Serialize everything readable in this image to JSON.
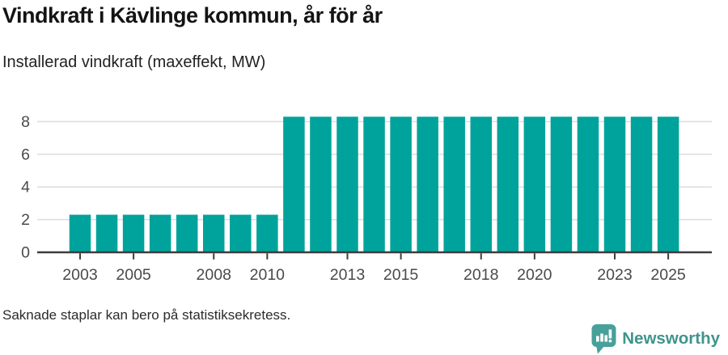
{
  "header": {
    "title": "Vindkraft i Kävlinge kommun, år för år",
    "subtitle": "Installerad vindkraft (maxeffekt, MW)"
  },
  "chart_data": {
    "type": "bar",
    "title": "Vindkraft i Kävlinge kommun, år för år",
    "subtitle": "Installerad vindkraft (maxeffekt, MW)",
    "xlabel": "",
    "ylabel": "",
    "x": [
      2002,
      2003,
      2004,
      2005,
      2006,
      2007,
      2008,
      2009,
      2010,
      2011,
      2012,
      2013,
      2014,
      2015,
      2016,
      2017,
      2018,
      2019,
      2020,
      2021,
      2022,
      2023,
      2024,
      2025
    ],
    "values": [
      null,
      2.3,
      2.3,
      2.3,
      2.3,
      2.3,
      2.3,
      2.3,
      2.3,
      8.3,
      8.3,
      8.3,
      8.3,
      8.3,
      8.3,
      8.3,
      8.3,
      8.3,
      8.3,
      8.3,
      8.3,
      8.3,
      8.3,
      8.3
    ],
    "x_ticks": [
      2003,
      2005,
      2008,
      2010,
      2013,
      2015,
      2018,
      2020,
      2023,
      2025
    ],
    "y_ticks": [
      0,
      2,
      4,
      6,
      8
    ],
    "ylim": [
      0,
      8.6
    ],
    "grid": true,
    "legend": "none",
    "note": "Saknade staplar kan bero på statistiksekretess."
  },
  "branding": {
    "logo_text": "Newsworthy"
  },
  "colors": {
    "bar": "#00a39b",
    "grid": "#dcdcdc",
    "axis": "#3d3d3d",
    "tick_label": "#4a4a4a",
    "logo": "#3f948c",
    "logo_bubble": "#47a099"
  }
}
